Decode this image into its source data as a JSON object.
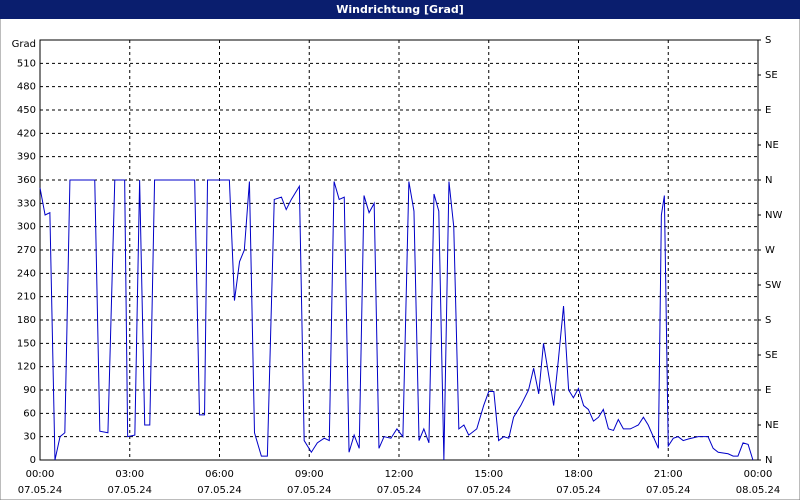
{
  "chart_data": {
    "type": "line",
    "title": "Windrichtung [Grad]",
    "y_label": "Grad",
    "color": "#0000c8",
    "grid": true,
    "xlim": [
      0,
      24
    ],
    "xticks": [
      {
        "value": 0,
        "label": "00:00"
      },
      {
        "value": 3,
        "label": "03:00"
      },
      {
        "value": 6,
        "label": "06:00"
      },
      {
        "value": 9,
        "label": "09:00"
      },
      {
        "value": 12,
        "label": "12:00"
      },
      {
        "value": 15,
        "label": "15:00"
      },
      {
        "value": 18,
        "label": "18:00"
      },
      {
        "value": 21,
        "label": "21:00"
      },
      {
        "value": 24,
        "label": "00:00"
      }
    ],
    "xtick_dates": [
      "07.05.24",
      "07.05.24",
      "07.05.24",
      "07.05.24",
      "07.05.24",
      "07.05.24",
      "07.05.24",
      "07.05.24",
      "08.05.24"
    ],
    "ylim": [
      0,
      540
    ],
    "yticks": [
      0,
      30,
      60,
      90,
      120,
      150,
      180,
      210,
      240,
      270,
      300,
      330,
      360,
      390,
      420,
      450,
      480,
      510
    ],
    "y2lim": [
      0,
      540
    ],
    "y2ticks": [
      {
        "value": 0,
        "label": "N"
      },
      {
        "value": 45,
        "label": "NE"
      },
      {
        "value": 90,
        "label": "E"
      },
      {
        "value": 135,
        "label": "SE"
      },
      {
        "value": 180,
        "label": "S"
      },
      {
        "value": 225,
        "label": "SW"
      },
      {
        "value": 270,
        "label": "W"
      },
      {
        "value": 315,
        "label": "NW"
      },
      {
        "value": 360,
        "label": "N"
      },
      {
        "value": 405,
        "label": "NE"
      },
      {
        "value": 450,
        "label": "E"
      },
      {
        "value": 495,
        "label": "SE"
      },
      {
        "value": 540,
        "label": "S"
      }
    ],
    "x": [
      0,
      0.17,
      0.33,
      0.5,
      0.67,
      0.83,
      1.0,
      1.83,
      2.0,
      2.27,
      2.5,
      2.83,
      2.93,
      3.17,
      3.33,
      3.5,
      3.67,
      3.83,
      5.17,
      5.33,
      5.5,
      5.6,
      6.33,
      6.5,
      6.67,
      6.83,
      7.0,
      7.17,
      7.4,
      7.6,
      7.83,
      8.07,
      8.23,
      8.4,
      8.67,
      8.83,
      9.07,
      9.27,
      9.5,
      9.67,
      9.83,
      10.0,
      10.17,
      10.33,
      10.5,
      10.67,
      10.83,
      11.0,
      11.17,
      11.33,
      11.5,
      11.73,
      11.93,
      12.13,
      12.33,
      12.5,
      12.67,
      12.83,
      13.0,
      13.17,
      13.33,
      13.5,
      13.67,
      13.83,
      14.0,
      14.17,
      14.33,
      14.6,
      14.83,
      15.0,
      15.17,
      15.33,
      15.5,
      15.67,
      15.83,
      16.07,
      16.33,
      16.5,
      16.67,
      16.83,
      17.0,
      17.17,
      17.33,
      17.5,
      17.67,
      17.83,
      18.0,
      18.17,
      18.33,
      18.5,
      18.67,
      18.83,
      19.0,
      19.17,
      19.33,
      19.5,
      19.73,
      20.0,
      20.17,
      20.33,
      20.5,
      20.67,
      20.77,
      20.87,
      21.0,
      21.17,
      21.33,
      21.5,
      21.67,
      22.0,
      22.33,
      22.5,
      22.67,
      23.0,
      23.17,
      23.33,
      23.5,
      23.67,
      23.83
    ],
    "values": [
      350,
      315,
      318,
      0,
      30,
      35,
      360,
      360,
      37,
      35,
      360,
      360,
      30,
      32,
      360,
      45,
      45,
      360,
      360,
      58,
      58,
      360,
      360,
      205,
      255,
      270,
      358,
      35,
      5,
      5,
      335,
      338,
      322,
      335,
      352,
      25,
      10,
      22,
      28,
      25,
      358,
      335,
      338,
      10,
      32,
      15,
      340,
      318,
      330,
      15,
      30,
      28,
      40,
      30,
      358,
      320,
      25,
      40,
      22,
      342,
      320,
      0,
      358,
      300,
      40,
      45,
      32,
      40,
      70,
      88,
      88,
      25,
      30,
      28,
      55,
      70,
      90,
      118,
      85,
      150,
      110,
      70,
      130,
      198,
      90,
      80,
      92,
      70,
      65,
      50,
      55,
      65,
      40,
      38,
      52,
      40,
      40,
      45,
      55,
      45,
      30,
      15,
      315,
      340,
      18,
      28,
      30,
      25,
      27,
      30,
      30,
      15,
      10,
      8,
      5,
      5,
      22,
      20,
      0
    ]
  }
}
